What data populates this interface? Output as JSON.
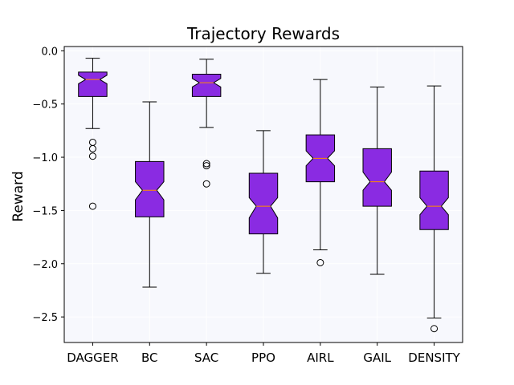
{
  "chart_data": {
    "type": "box",
    "title": "Trajectory Rewards",
    "xlabel": "",
    "ylabel": "Reward",
    "ylim": [
      -2.74,
      0.04
    ],
    "yticks": [
      0.0,
      -0.5,
      -1.0,
      -1.5,
      -2.0,
      -2.5
    ],
    "ytick_labels": [
      "0.0",
      "−0.5",
      "−1.0",
      "−1.5",
      "−2.0",
      "−2.5"
    ],
    "grid": true,
    "notched": true,
    "box_color": "#8a2be2",
    "median_color": "#ff8c00",
    "background_color": "#f7f8fd",
    "categories": [
      "DAGGER",
      "BC",
      "SAC",
      "PPO",
      "AIRL",
      "GAIL",
      "DENSITY"
    ],
    "boxes": [
      {
        "name": "DAGGER",
        "whisker_low": -0.73,
        "q1": -0.43,
        "median": -0.27,
        "q3": -0.2,
        "whisker_high": -0.07,
        "notch_low": -0.31,
        "notch_high": -0.23,
        "outliers": [
          -0.86,
          -0.92,
          -0.99,
          -1.46
        ]
      },
      {
        "name": "BC",
        "whisker_low": -2.22,
        "q1": -1.56,
        "median": -1.31,
        "q3": -1.04,
        "whisker_high": -0.48,
        "notch_low": -1.4,
        "notch_high": -1.23,
        "outliers": []
      },
      {
        "name": "SAC",
        "whisker_low": -0.72,
        "q1": -0.43,
        "median": -0.3,
        "q3": -0.22,
        "whisker_high": -0.08,
        "notch_low": -0.34,
        "notch_high": -0.26,
        "outliers": [
          -1.06,
          -1.08,
          -1.25
        ]
      },
      {
        "name": "PPO",
        "whisker_low": -2.09,
        "q1": -1.72,
        "median": -1.46,
        "q3": -1.15,
        "whisker_high": -0.75,
        "notch_low": -1.57,
        "notch_high": -1.38,
        "outliers": []
      },
      {
        "name": "AIRL",
        "whisker_low": -1.87,
        "q1": -1.23,
        "median": -1.01,
        "q3": -0.79,
        "whisker_high": -0.27,
        "notch_low": -1.08,
        "notch_high": -0.94,
        "outliers": [
          -1.99
        ]
      },
      {
        "name": "GAIL",
        "whisker_low": -2.1,
        "q1": -1.46,
        "median": -1.23,
        "q3": -0.92,
        "whisker_high": -0.34,
        "notch_low": -1.31,
        "notch_high": -1.14,
        "outliers": []
      },
      {
        "name": "DENSITY",
        "whisker_low": -2.51,
        "q1": -1.68,
        "median": -1.46,
        "q3": -1.13,
        "whisker_high": -0.33,
        "notch_low": -1.54,
        "notch_high": -1.38,
        "outliers": [
          -2.61
        ]
      }
    ]
  }
}
